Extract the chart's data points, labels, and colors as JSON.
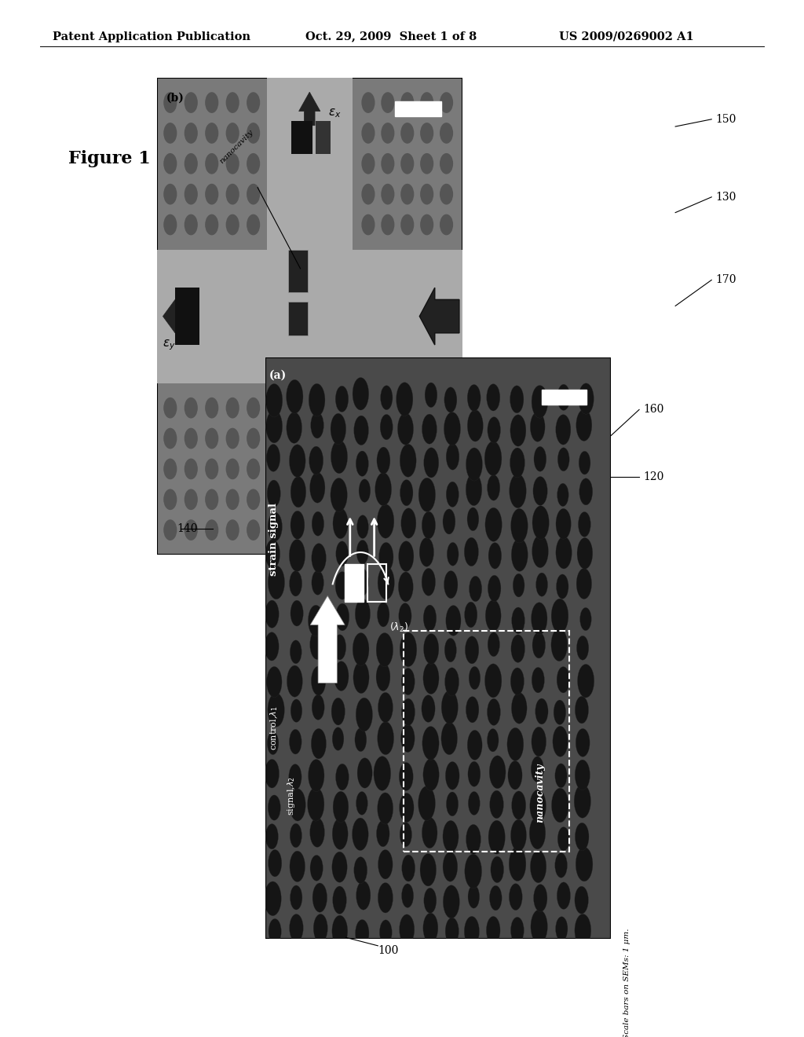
{
  "header_left": "Patent Application Publication",
  "header_center": "Oct. 29, 2009  Sheet 1 of 8",
  "header_right": "US 2009/0269002 A1",
  "figure_label": "Figure 1",
  "bg_color": "#ffffff",
  "scale_bar_text": "Scale bars on SEMs: 1 μm.",
  "panel_b": {
    "bg": "#7a7a7a",
    "cross_color": "#aaaaaa",
    "dot_color": "#555555",
    "border": "#000000"
  },
  "panel_a": {
    "bg": "#4a4a4a",
    "hole_color": "#1a1a1a",
    "border": "#000000"
  }
}
